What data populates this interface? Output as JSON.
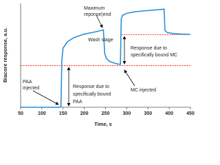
{
  "chart_data": {
    "type": "line",
    "x_label": "Time, s",
    "y_label": "Biacore response, a.u.",
    "xlim": [
      50,
      450
    ],
    "xticks": [
      50,
      100,
      150,
      200,
      250,
      300,
      350,
      400,
      450
    ],
    "ylim": [
      0,
      1000
    ],
    "grid": false,
    "series": [
      {
        "color": "#2a8fd8",
        "x": [
          50,
          140,
          145,
          147,
          150,
          160,
          175,
          200,
          225,
          245,
          248,
          252,
          260,
          275,
          285,
          287,
          290,
          300,
          320,
          340,
          375,
          388,
          390,
          395,
          410,
          430,
          450
        ],
        "values": [
          0,
          0,
          5,
          450,
          570,
          630,
          670,
          705,
          725,
          745,
          520,
          470,
          440,
          420,
          412,
          850,
          885,
          905,
          920,
          928,
          940,
          945,
          740,
          720,
          710,
          705,
          702
        ]
      }
    ],
    "reference_lines": [
      {
        "y": 400,
        "x": [
          50,
          450
        ],
        "color": "#ff0000"
      },
      {
        "y": 700,
        "x": [
          287,
          450
        ],
        "color": "#ff0000"
      }
    ],
    "annotations": [
      {
        "lines": [
          "Maximum",
          "reponse(end"
        ]
      },
      {
        "lines": [
          "Wash stage"
        ]
      },
      {
        "lines": [
          "Response due to",
          "specifically bound MC"
        ]
      },
      {
        "lines": [
          "PAA",
          "injected"
        ]
      },
      {
        "lines": [
          "Response due to",
          "specifically bound",
          "PAA"
        ]
      },
      {
        "lines": [
          "MC injected"
        ]
      }
    ]
  }
}
